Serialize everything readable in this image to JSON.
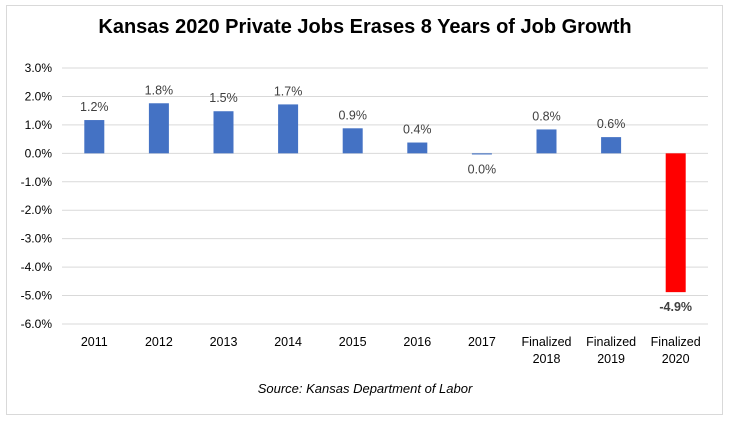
{
  "chart_data": {
    "type": "bar",
    "title": "Kansas 2020 Private Jobs Erases 8 Years of Job Growth",
    "source": "Source: Kansas Department of Labor",
    "categories": [
      [
        "2011"
      ],
      [
        "2012"
      ],
      [
        "2013"
      ],
      [
        "2014"
      ],
      [
        "2015"
      ],
      [
        "2016"
      ],
      [
        "2017"
      ],
      [
        "Finalized",
        "2018"
      ],
      [
        "Finalized",
        "2019"
      ],
      [
        "Finalized",
        "2020"
      ]
    ],
    "values": [
      1.2,
      1.8,
      1.5,
      1.7,
      0.9,
      0.4,
      0.0,
      0.8,
      0.6,
      -4.9
    ],
    "plotted_values": [
      1.17,
      1.76,
      1.48,
      1.72,
      0.88,
      0.38,
      -0.04,
      0.84,
      0.57,
      -4.88
    ],
    "data_labels": [
      "1.2%",
      "1.8%",
      "1.5%",
      "1.7%",
      "0.9%",
      "0.4%",
      "0.0%",
      "0.8%",
      "0.6%",
      "-4.9%"
    ],
    "ylim": [
      -6.0,
      3.0
    ],
    "yticks": [
      3.0,
      2.0,
      1.0,
      0.0,
      -1.0,
      -2.0,
      -3.0,
      -4.0,
      -5.0,
      -6.0
    ],
    "ytick_labels": [
      "3.0%",
      "2.0%",
      "1.0%",
      "0.0%",
      "-1.0%",
      "-2.0%",
      "-3.0%",
      "-4.0%",
      "-5.0%",
      "-6.0%"
    ],
    "grid": true,
    "colors": {
      "bar": "#4472c4",
      "highlight": "#ff0000",
      "highlight_label": "#ff0000",
      "grid": "#d9d9d9"
    },
    "highlight_index": 9
  }
}
